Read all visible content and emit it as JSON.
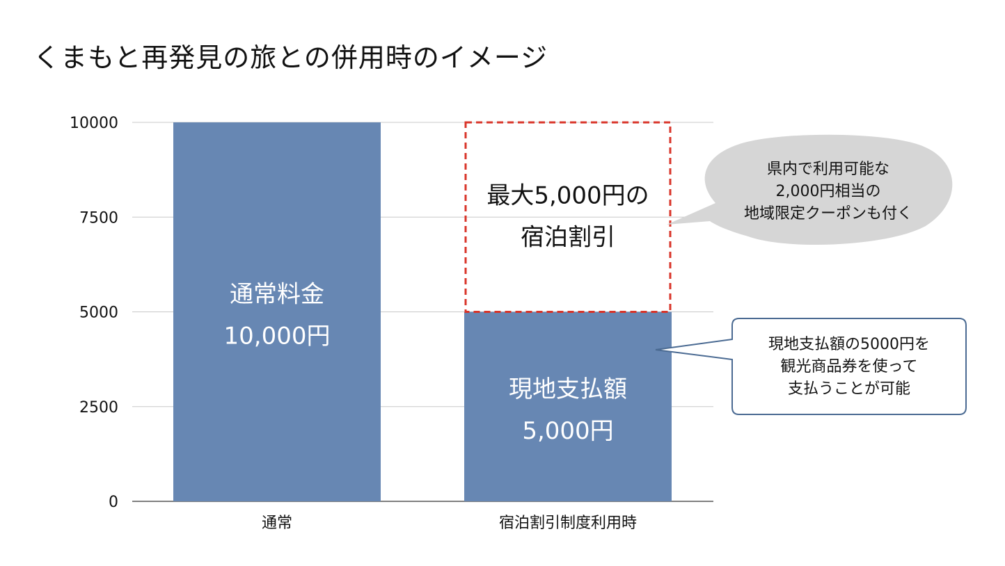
{
  "title": "くまもと再発見の旅との併用時のイメージ",
  "chart_data": {
    "type": "bar",
    "stacked": true,
    "categories": [
      "通常",
      "宿泊割引制度利用時"
    ],
    "series": [
      {
        "values": [
          10000,
          5000
        ],
        "color": "#6787b3"
      },
      {
        "values": [
          0,
          5000
        ],
        "color": "transparent"
      }
    ],
    "ylim": [
      0,
      10000
    ],
    "yticks": [
      "0",
      "2500",
      "5000",
      "7500",
      "10000"
    ],
    "grid": true,
    "bar_labels": [
      {
        "line1": "通常料金",
        "line2": "10,000円"
      },
      {
        "line1": "現地支払額",
        "line2": "5,000円"
      }
    ],
    "discount_label": {
      "line1": "最大5,000円の",
      "line2": "宿泊割引"
    },
    "annotations": [
      {
        "lines": [
          "県内で利用可能な",
          "2,000円相当の",
          "地域限定クーポンも付く"
        ]
      },
      {
        "lines": [
          "現地支払額の5000円を",
          "観光商品券を使って",
          "支払うことが可能"
        ]
      }
    ],
    "colors": {
      "bar": "#6787b3",
      "discount_border": "#d9352a",
      "bubble": "#d6d6d6",
      "callout_border": "#4a6a92"
    }
  }
}
